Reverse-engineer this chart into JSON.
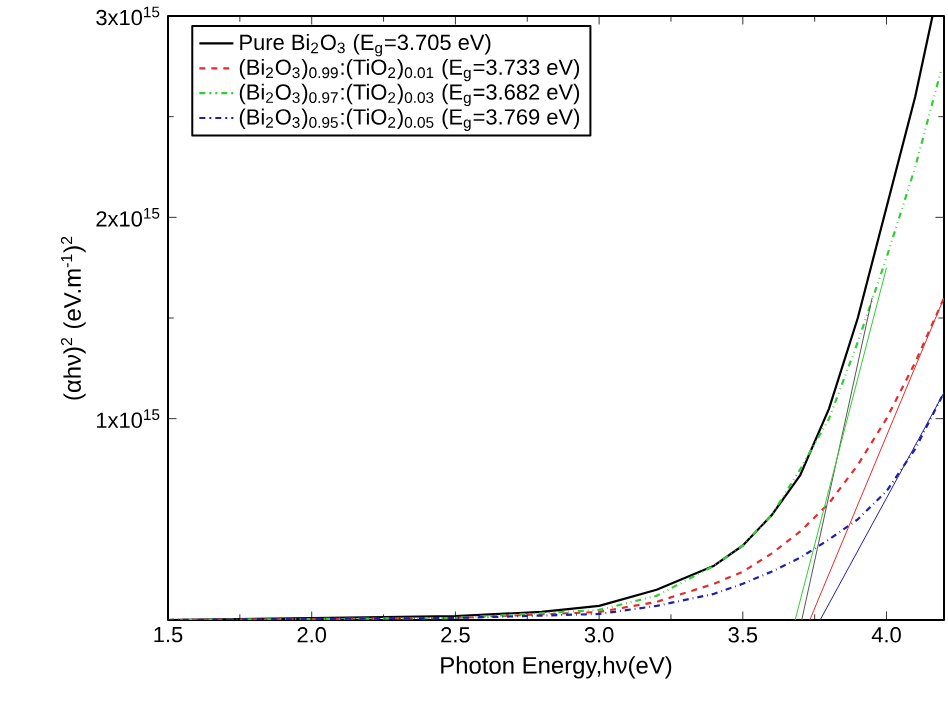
{
  "chart_data": {
    "type": "line",
    "xlabel": "Photon Energy,hν(eV)",
    "ylabel": "(αhν)$^{2}$ (eV.m$^{-1}$)$^{2}$",
    "xlim": [
      1.5,
      4.2
    ],
    "xticks": [
      1.5,
      {
        "value": 2,
        "label": "2.0"
      },
      2.5,
      {
        "value": 3,
        "label": "3.0"
      },
      3.5,
      {
        "value": 4,
        "label": "4.0"
      }
    ],
    "ylim": [
      0,
      3000000000000000.0
    ],
    "yticks": [
      {
        "value": 1000000000000000.0,
        "label": "1x10$^{15}$"
      },
      {
        "value": 2000000000000000.0,
        "label": "2x10$^{15}$"
      },
      {
        "value": 3000000000000000.0,
        "label": "3x10$^{15}$"
      }
    ],
    "legend": "top left",
    "grid": false,
    "marker": "none",
    "series": [
      {
        "name": "Pure Bi$_{2}$O$_{3}$            (E$_{g}$=3.705 eV)",
        "color": "#000000",
        "line_style": "solid",
        "x": [
          1.5,
          2.0,
          2.5,
          2.8,
          3.0,
          3.2,
          3.4,
          3.5,
          3.6,
          3.7,
          3.8,
          3.9,
          4.0,
          4.1,
          4.16
        ],
        "values": [
          0,
          10000000000000.0,
          20000000000000.0,
          40000000000000.0,
          70000000000000.0,
          150000000000000.0,
          270000000000000.0,
          370000000000000.0,
          520000000000000.0,
          720000000000000.0,
          1050000000000000.0,
          1500000000000000.0,
          2050000000000000.0,
          2600000000000000.0,
          3000000000000000.0
        ]
      },
      {
        "name": "(Bi$_{2}$O$_{3}$)$_{0.99}$:(TiO$_{2}$)$_{0.01}$ (E$_{g}$=3.733 eV)",
        "color": "#e52b2b",
        "line_style": "dashed",
        "x": [
          1.5,
          2.5,
          3.0,
          3.2,
          3.4,
          3.5,
          3.6,
          3.7,
          3.8,
          3.9,
          4.0,
          4.1,
          4.2
        ],
        "values": [
          0,
          10000000000000.0,
          40000000000000.0,
          90000000000000.0,
          180000000000000.0,
          240000000000000.0,
          330000000000000.0,
          440000000000000.0,
          580000000000000.0,
          770000000000000.0,
          1000000000000000.0,
          1280000000000000.0,
          1600000000000000.0
        ]
      },
      {
        "name": "(Bi$_{2}$O$_{3}$)$_{0.97}$:(TiO$_{2}$)$_{0.03}$ (E$_{g}$=3.682 eV)",
        "color": "#33cc33",
        "line_style": "dashdotdotted",
        "x": [
          1.5,
          2.5,
          3.0,
          3.2,
          3.4,
          3.5,
          3.6,
          3.7,
          3.8,
          3.9,
          4.0,
          4.1,
          4.19
        ],
        "values": [
          0,
          10000000000000.0,
          50000000000000.0,
          120000000000000.0,
          270000000000000.0,
          370000000000000.0,
          520000000000000.0,
          750000000000000.0,
          1000000000000000.0,
          1380000000000000.0,
          1800000000000000.0,
          2250000000000000.0,
          2730000000000000.0
        ]
      },
      {
        "name": "(Bi$_{2}$O$_{3}$)$_{0.95}$:(TiO$_{2}$)$_{0.05}$ (E$_{g}$=3.769 eV)",
        "color": "#1f1fa8",
        "line_style": "dashdotted",
        "x": [
          1.5,
          2.5,
          3.0,
          3.2,
          3.4,
          3.5,
          3.6,
          3.7,
          3.8,
          3.9,
          4.0,
          4.1,
          4.2
        ],
        "values": [
          0,
          10000000000000.0,
          30000000000000.0,
          70000000000000.0,
          130000000000000.0,
          180000000000000.0,
          240000000000000.0,
          310000000000000.0,
          400000000000000.0,
          500000000000000.0,
          640000000000000.0,
          850000000000000.0,
          1130000000000000.0
        ]
      },
      {
        "color": "#555555",
        "line_style": "solid",
        "x": [
          3.705,
          3.95
        ],
        "values": [
          0,
          1600000000000000.0
        ]
      },
      {
        "color": "#e52b2b",
        "line_style": "solid",
        "x": [
          3.733,
          4.2
        ],
        "values": [
          0,
          1600000000000000.0
        ]
      },
      {
        "color": "#33cc33",
        "line_style": "solid",
        "x": [
          3.682,
          4.0
        ],
        "values": [
          0,
          1750000000000000.0
        ]
      },
      {
        "color": "#1f1fa8",
        "line_style": "solid",
        "x": [
          3.769,
          4.2
        ],
        "values": [
          0,
          1130000000000000.0
        ]
      }
    ]
  }
}
